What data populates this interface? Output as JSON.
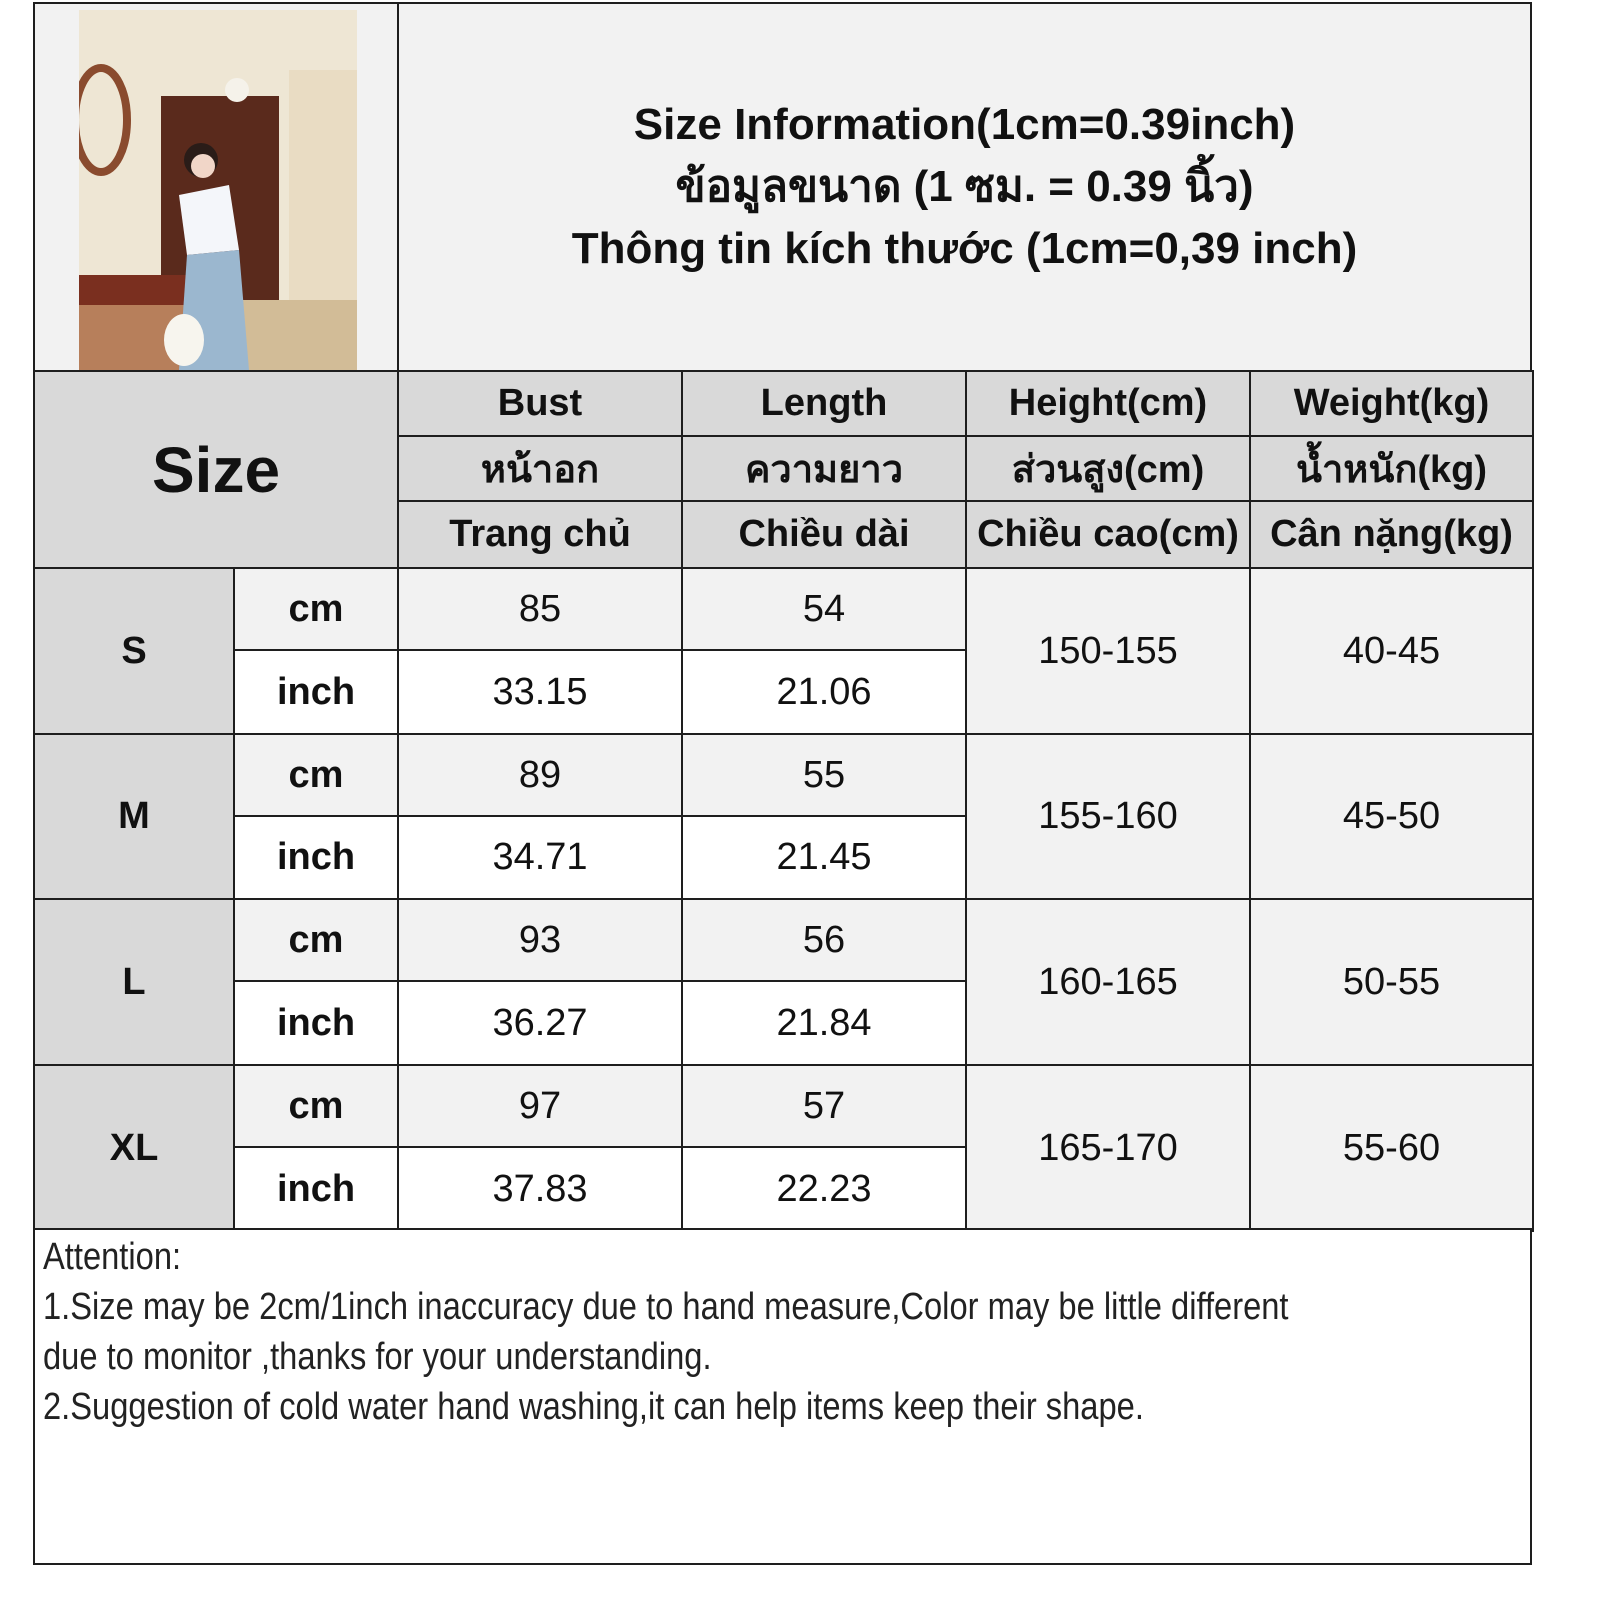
{
  "title": {
    "en": "Size Information(1cm=0.39inch)",
    "th": "ข้อมูลขนาด (1 ซม. = 0.39 นิ้ว)",
    "vi": "Thông tin kích thước (1cm=0,39 inch)"
  },
  "size_header": "Size",
  "columns": [
    {
      "en": "Bust",
      "th": "หน้าอก",
      "vi": "Trang chủ"
    },
    {
      "en": "Length",
      "th": "ความยาว",
      "vi": "Chiều dài"
    },
    {
      "en": "Height(cm)",
      "th": "ส่วนสูง(cm)",
      "vi": "Chiều cao(cm)"
    },
    {
      "en": "Weight(kg)",
      "th": "น้ำหนัก(kg)",
      "vi": "Cân nặng(kg)"
    }
  ],
  "unit_labels": {
    "cm": "cm",
    "inch": "inch"
  },
  "rows": [
    {
      "size": "S",
      "bust_cm": "85",
      "bust_inch": "33.15",
      "length_cm": "54",
      "length_inch": "21.06",
      "height": "150-155",
      "weight": "40-45"
    },
    {
      "size": "M",
      "bust_cm": "89",
      "bust_inch": "34.71",
      "length_cm": "55",
      "length_inch": "21.45",
      "height": "155-160",
      "weight": "45-50"
    },
    {
      "size": "L",
      "bust_cm": "93",
      "bust_inch": "36.27",
      "length_cm": "56",
      "length_inch": "21.84",
      "height": "160-165",
      "weight": "50-55"
    },
    {
      "size": "XL",
      "bust_cm": "97",
      "bust_inch": "37.83",
      "length_cm": "57",
      "length_inch": "22.23",
      "height": "165-170",
      "weight": "55-60"
    }
  ],
  "notes": {
    "heading": "Attention:",
    "line1": "1.Size may be 2cm/1inch inaccuracy due to hand measure,Color may be little different",
    "line2": "due to monitor ,thanks for your understanding.",
    "line3": "2.Suggestion of cold water hand washing,it can help items keep their shape."
  },
  "colors": {
    "header_bg": "#d9d9d9",
    "cell_bg": "#f2f2f2",
    "border": "#1e1e1e"
  }
}
